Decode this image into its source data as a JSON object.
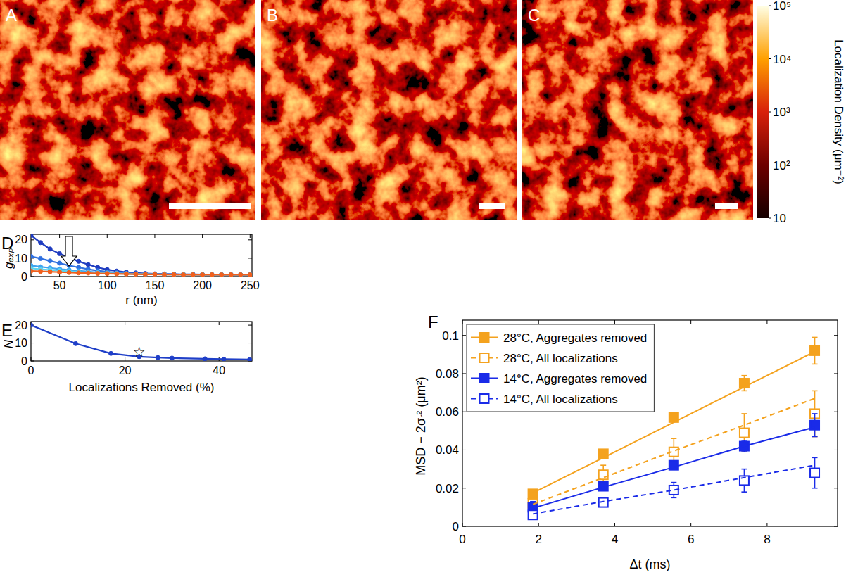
{
  "chart_data": [
    {
      "type": "image",
      "panels": [
        "A",
        "B",
        "C"
      ],
      "log": true,
      "colorbar": {
        "label": "Localization Density (μm⁻²)",
        "range": [
          10,
          100000
        ],
        "ticks": [
          10,
          {
            "value": 100,
            "label": "10²"
          },
          {
            "value": 1000,
            "label": "10³"
          },
          {
            "value": 10000,
            "label": "10⁴"
          },
          {
            "value": 100000,
            "label": "10⁵"
          }
        ]
      }
    },
    {
      "type": "line",
      "panel": "D",
      "xlabel": "r (nm)",
      "ylabel": "gₑₓₚ",
      "marker": "circle",
      "grid": false,
      "x": [
        20,
        30,
        40,
        50,
        60,
        70,
        80,
        90,
        100,
        110,
        120,
        130,
        140,
        150,
        160,
        170,
        180,
        190,
        200,
        210,
        220,
        230,
        240,
        250
      ],
      "series": [
        {
          "color": "#1f3cc0",
          "values": [
            22.5,
            18.5,
            15,
            12.5,
            10.3,
            8.3,
            6.5,
            5,
            3.8,
            3,
            2.4,
            2,
            1.7,
            1.5,
            1.4,
            1.3,
            1.2,
            1.2,
            1.1,
            1.1,
            1.1,
            1,
            1,
            1
          ]
        },
        {
          "color": "#2f70e0",
          "values": [
            11,
            9.8,
            8.5,
            7.3,
            6,
            5,
            4,
            3.2,
            2.6,
            2.1,
            1.8,
            1.6,
            1.4,
            1.3,
            1.2,
            1.2,
            1.1,
            1.1,
            1.1,
            1,
            1,
            1,
            1,
            1
          ]
        },
        {
          "color": "#3ea4f0",
          "values": [
            6,
            5.3,
            4.7,
            4.1,
            3.6,
            3.1,
            2.7,
            2.3,
            2,
            1.8,
            1.6,
            1.4,
            1.3,
            1.2,
            1.2,
            1.1,
            1.1,
            1.1,
            1,
            1,
            1,
            1,
            1,
            1
          ]
        },
        {
          "color": "#5cd4ee",
          "values": [
            4.5,
            4,
            3.6,
            3.2,
            2.8,
            2.5,
            2.2,
            2,
            1.8,
            1.6,
            1.5,
            1.4,
            1.3,
            1.2,
            1.1,
            1.1,
            1.1,
            1,
            1,
            1,
            1,
            1,
            1,
            1
          ]
        },
        {
          "color": "#f0601e",
          "values": [
            3,
            2.8,
            2.6,
            2.4,
            2.2,
            2,
            1.9,
            1.7,
            1.6,
            1.5,
            1.4,
            1.3,
            1.2,
            1.2,
            1.1,
            1.1,
            1,
            1,
            1,
            1,
            1,
            1,
            1,
            1
          ]
        }
      ],
      "xlim": [
        20,
        252
      ],
      "ylim": [
        0,
        23
      ],
      "xticks": [
        50,
        100,
        150,
        200,
        250
      ],
      "yticks": [
        0,
        10,
        20
      ]
    },
    {
      "type": "line",
      "panel": "E",
      "xlabel": "Localizations Removed (%)",
      "ylabel": "N",
      "marker": "circle",
      "grid": false,
      "x": [
        0,
        9.5,
        17,
        23,
        27,
        30,
        37,
        41,
        46.5
      ],
      "series": [
        {
          "color": "#1f3fc8",
          "values": [
            20,
            9.7,
            4.2,
            2.4,
            1.9,
            1.6,
            1.2,
            1.0,
            0.8
          ]
        }
      ],
      "annotations": [
        {
          "text": "☆",
          "x": 23,
          "y": 4.8
        }
      ],
      "xlim": [
        0,
        47
      ],
      "ylim": [
        0,
        22
      ],
      "xticks": [
        0,
        20,
        40
      ],
      "yticks": [
        0,
        10,
        20
      ]
    },
    {
      "type": "scatter",
      "panel": "F",
      "xlabel": "Δt (ms)",
      "ylabel": "MSD − 2σᵣ² (μm²)",
      "legend": "upper left",
      "grid": false,
      "x": [
        1.85,
        3.7,
        5.55,
        7.4,
        9.25
      ],
      "series": [
        {
          "name": "28°C, Aggregates removed",
          "type": "scatter",
          "color": "#f4a21e",
          "marker": "square",
          "line_style": "solid",
          "values": [
            0.017,
            0.038,
            0.057,
            0.075,
            0.092
          ],
          "errors": [
            0.002,
            0.002,
            0.002,
            0.004,
            0.007
          ]
        },
        {
          "name": "28°C, All localizations",
          "type": "scatter",
          "color": "#f4a21e",
          "marker": "square-open",
          "line_style": "dashed",
          "values": [
            0.012,
            0.027,
            0.039,
            0.049,
            0.059
          ],
          "errors": [
            0.003,
            0.005,
            0.007,
            0.01,
            0.012
          ]
        },
        {
          "name": "14°C, Aggregates removed",
          "type": "scatter",
          "color": "#1a2be8",
          "marker": "square",
          "line_style": "solid",
          "values": [
            0.01,
            0.021,
            0.032,
            0.042,
            0.053
          ],
          "errors": [
            0.003,
            0.002,
            0.002,
            0.003,
            0.006
          ]
        },
        {
          "name": "14°C, All localizations",
          "type": "scatter",
          "color": "#1a2be8",
          "marker": "square-open",
          "line_style": "dashed",
          "values": [
            0.006,
            0.0125,
            0.019,
            0.024,
            0.028
          ],
          "errors": [
            0.002,
            0.002,
            0.004,
            0.006,
            0.008
          ]
        },
        {
          "type": "line",
          "color": "#f4a21e",
          "line_style": "solid",
          "values": [
            0.0175,
            0.036,
            0.0545,
            0.073,
            0.0915
          ]
        },
        {
          "type": "line",
          "color": "#f4a21e",
          "line_style": "dashed",
          "values": [
            0.0115,
            0.0255,
            0.0395,
            0.053,
            0.067
          ]
        },
        {
          "type": "line",
          "color": "#1a2be8",
          "line_style": "solid",
          "values": [
            0.0095,
            0.0205,
            0.031,
            0.042,
            0.052
          ]
        },
        {
          "type": "line",
          "color": "#1a2be8",
          "line_style": "dashed",
          "values": [
            0.0065,
            0.013,
            0.019,
            0.0255,
            0.032
          ]
        }
      ],
      "xlim": [
        0,
        9.85
      ],
      "ylim": [
        0,
        0.108
      ],
      "xticks": [
        0,
        2,
        4,
        6,
        8
      ],
      "yticks": [
        0,
        0.02,
        0.04,
        0.06,
        0.08,
        0.1
      ]
    }
  ]
}
